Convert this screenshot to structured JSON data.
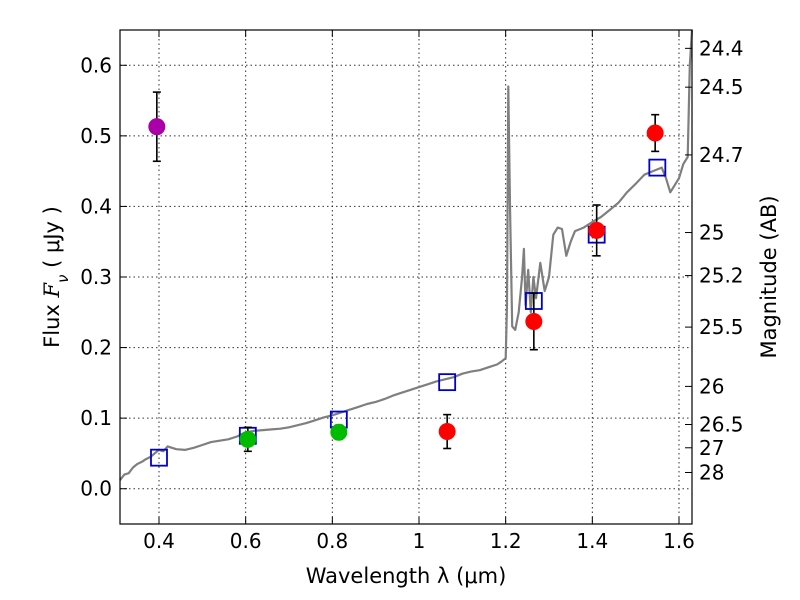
{
  "chart_data": {
    "type": "scatter",
    "xlabel": "Wavelength  λ (μm)",
    "ylabel": "Flux  F_ν  ( μJy )",
    "ylabel_parts": {
      "prefix": "Flux  ",
      "symbol": "F",
      "subscript": "ν",
      "suffix": "  ( μJy )"
    },
    "y2label": "Magnitude (AB)",
    "xlim": [
      0.31,
      1.63
    ],
    "ylim": [
      -0.05,
      0.65
    ],
    "x_ticks": [
      {
        "value": 0.4,
        "label": "0.4"
      },
      {
        "value": 0.6,
        "label": "0.6"
      },
      {
        "value": 0.8,
        "label": "0.8"
      },
      {
        "value": 1.0,
        "label": "1"
      },
      {
        "value": 1.2,
        "label": "1.2"
      },
      {
        "value": 1.4,
        "label": "1.4"
      },
      {
        "value": 1.6,
        "label": "1.6"
      }
    ],
    "y_ticks": [
      {
        "value": 0.0,
        "label": "0.0"
      },
      {
        "value": 0.1,
        "label": "0.1"
      },
      {
        "value": 0.2,
        "label": "0.2"
      },
      {
        "value": 0.3,
        "label": "0.3"
      },
      {
        "value": 0.4,
        "label": "0.4"
      },
      {
        "value": 0.5,
        "label": "0.5"
      },
      {
        "value": 0.6,
        "label": "0.6"
      }
    ],
    "y2_ticks": [
      {
        "flux": 0.624,
        "label": "24.4"
      },
      {
        "flux": 0.569,
        "label": "24.5"
      },
      {
        "flux": 0.473,
        "label": "24.7"
      },
      {
        "flux": 0.363,
        "label": "25"
      },
      {
        "flux": 0.302,
        "label": "25.2"
      },
      {
        "flux": 0.229,
        "label": "25.5"
      },
      {
        "flux": 0.145,
        "label": "26"
      },
      {
        "flux": 0.091,
        "label": "26.5"
      },
      {
        "flux": 0.058,
        "label": "27"
      },
      {
        "flux": 0.023,
        "label": "28"
      }
    ],
    "grid": true,
    "series": [
      {
        "name": "model_spectrum",
        "kind": "line",
        "color": "#7f7f7f",
        "points": [
          [
            0.31,
            0.012
          ],
          [
            0.32,
            0.02
          ],
          [
            0.33,
            0.022
          ],
          [
            0.34,
            0.03
          ],
          [
            0.35,
            0.035
          ],
          [
            0.36,
            0.038
          ],
          [
            0.37,
            0.042
          ],
          [
            0.38,
            0.045
          ],
          [
            0.39,
            0.05
          ],
          [
            0.4,
            0.055
          ],
          [
            0.41,
            0.053
          ],
          [
            0.42,
            0.06
          ],
          [
            0.43,
            0.058
          ],
          [
            0.44,
            0.056
          ],
          [
            0.46,
            0.055
          ],
          [
            0.48,
            0.058
          ],
          [
            0.5,
            0.062
          ],
          [
            0.52,
            0.066
          ],
          [
            0.54,
            0.068
          ],
          [
            0.56,
            0.07
          ],
          [
            0.58,
            0.074
          ],
          [
            0.6,
            0.08
          ],
          [
            0.62,
            0.082
          ],
          [
            0.64,
            0.083
          ],
          [
            0.66,
            0.084
          ],
          [
            0.68,
            0.085
          ],
          [
            0.7,
            0.087
          ],
          [
            0.72,
            0.09
          ],
          [
            0.74,
            0.093
          ],
          [
            0.76,
            0.097
          ],
          [
            0.78,
            0.101
          ],
          [
            0.8,
            0.104
          ],
          [
            0.82,
            0.108
          ],
          [
            0.84,
            0.112
          ],
          [
            0.86,
            0.116
          ],
          [
            0.88,
            0.12
          ],
          [
            0.9,
            0.123
          ],
          [
            0.92,
            0.127
          ],
          [
            0.94,
            0.132
          ],
          [
            0.96,
            0.136
          ],
          [
            0.98,
            0.14
          ],
          [
            1.0,
            0.144
          ],
          [
            1.02,
            0.148
          ],
          [
            1.04,
            0.152
          ],
          [
            1.06,
            0.155
          ],
          [
            1.08,
            0.158
          ],
          [
            1.1,
            0.163
          ],
          [
            1.12,
            0.166
          ],
          [
            1.14,
            0.168
          ],
          [
            1.16,
            0.172
          ],
          [
            1.18,
            0.176
          ],
          [
            1.19,
            0.18
          ],
          [
            1.2,
            0.185
          ],
          [
            1.203,
            0.26
          ],
          [
            1.206,
            0.57
          ],
          [
            1.21,
            0.4
          ],
          [
            1.215,
            0.23
          ],
          [
            1.222,
            0.225
          ],
          [
            1.23,
            0.25
          ],
          [
            1.238,
            0.3
          ],
          [
            1.242,
            0.34
          ],
          [
            1.246,
            0.26
          ],
          [
            1.252,
            0.31
          ],
          [
            1.258,
            0.25
          ],
          [
            1.264,
            0.3
          ],
          [
            1.27,
            0.27
          ],
          [
            1.28,
            0.32
          ],
          [
            1.29,
            0.28
          ],
          [
            1.3,
            0.3
          ],
          [
            1.31,
            0.36
          ],
          [
            1.32,
            0.37
          ],
          [
            1.33,
            0.368
          ],
          [
            1.34,
            0.33
          ],
          [
            1.35,
            0.35
          ],
          [
            1.36,
            0.365
          ],
          [
            1.38,
            0.37
          ],
          [
            1.4,
            0.378
          ],
          [
            1.42,
            0.385
          ],
          [
            1.44,
            0.395
          ],
          [
            1.46,
            0.405
          ],
          [
            1.48,
            0.42
          ],
          [
            1.5,
            0.432
          ],
          [
            1.52,
            0.445
          ],
          [
            1.54,
            0.45
          ],
          [
            1.56,
            0.455
          ],
          [
            1.57,
            0.44
          ],
          [
            1.58,
            0.42
          ],
          [
            1.6,
            0.44
          ],
          [
            1.61,
            0.46
          ],
          [
            1.62,
            0.47
          ],
          [
            1.625,
            0.6
          ],
          [
            1.63,
            0.65
          ]
        ]
      },
      {
        "name": "model_photometry",
        "kind": "open_square",
        "color": "#0000cc",
        "points": [
          [
            0.4,
            0.044
          ],
          [
            0.605,
            0.075
          ],
          [
            0.815,
            0.098
          ],
          [
            1.065,
            0.151
          ],
          [
            1.265,
            0.266
          ],
          [
            1.41,
            0.36
          ],
          [
            1.55,
            0.455
          ]
        ]
      },
      {
        "name": "observed_magenta",
        "kind": "point_error",
        "color": "#aa00aa",
        "points": [
          {
            "x": 0.395,
            "y": 0.513,
            "err": 0.049
          }
        ]
      },
      {
        "name": "observed_green",
        "kind": "point_error",
        "color": "#00bb00",
        "points": [
          {
            "x": 0.605,
            "y": 0.07,
            "err": 0.017
          },
          {
            "x": 0.815,
            "y": 0.08,
            "err": 0.01
          }
        ]
      },
      {
        "name": "observed_red",
        "kind": "point_error",
        "color": "#ff0000",
        "points": [
          {
            "x": 1.065,
            "y": 0.081,
            "err": 0.024
          },
          {
            "x": 1.265,
            "y": 0.237,
            "err": 0.04
          },
          {
            "x": 1.41,
            "y": 0.366,
            "err": 0.036
          },
          {
            "x": 1.545,
            "y": 0.504,
            "err": 0.026
          }
        ]
      }
    ]
  }
}
